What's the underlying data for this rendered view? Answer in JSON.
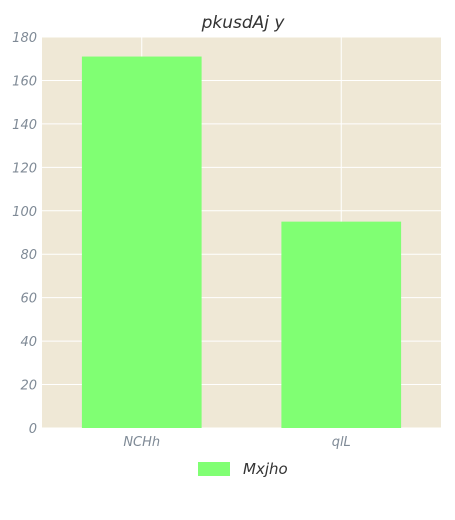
{
  "chart_data": {
    "type": "bar",
    "title": "pkusdAj y",
    "xlabel": "",
    "ylabel": "",
    "categories": [
      "NCHh",
      "qlL"
    ],
    "series": [
      {
        "name": "Mxjho",
        "values": [
          171,
          95
        ]
      }
    ],
    "ylim": [
      0,
      180
    ],
    "yticks": [
      0,
      20,
      40,
      60,
      80,
      100,
      120,
      140,
      160,
      180
    ],
    "grid": true,
    "legend_position": "bottom-center",
    "colors": {
      "plot_background": "#efe8d6",
      "grid": "#ffffff",
      "bar": "#80ff73",
      "tick_text": "#7f8a96",
      "title_text": "#333333"
    }
  }
}
